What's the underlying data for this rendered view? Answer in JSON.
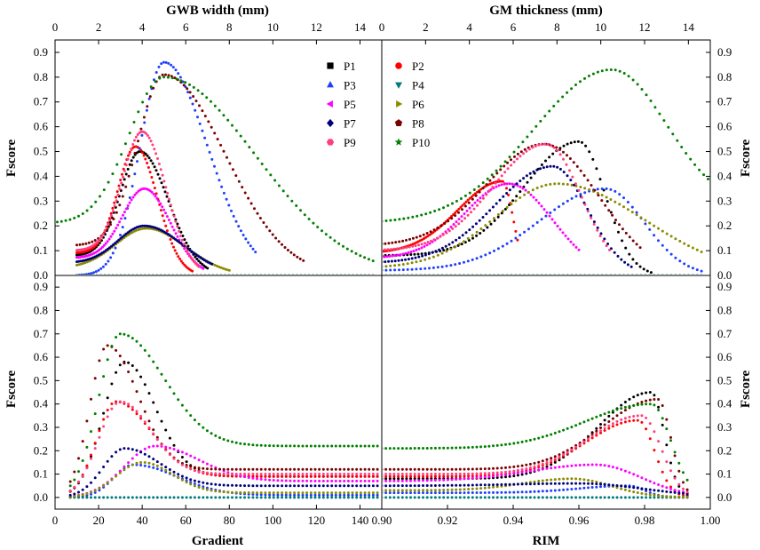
{
  "figure": {
    "colors": {
      "P1": "#000000",
      "P2": "#ff0000",
      "P3": "#1f3fff",
      "P4": "#007a7a",
      "P5": "#ff00ff",
      "P6": "#8b8b00",
      "P7": "#00007a",
      "P8": "#7a0000",
      "P9": "#ff3f7f",
      "P10": "#008000"
    },
    "markers": {
      "P1": "square",
      "P2": "circle",
      "P3": "triangle-up",
      "P4": "triangle-down",
      "P5": "triangle-left",
      "P6": "triangle-right",
      "P7": "diamond",
      "P8": "pentagon",
      "P9": "hexagon",
      "P10": "star"
    },
    "legend": [
      "P1",
      "P2",
      "P3",
      "P4",
      "P5",
      "P6",
      "P7",
      "P8",
      "P9",
      "P10"
    ]
  },
  "chart_data": [
    {
      "id": "tl",
      "type": "scatter",
      "title": "",
      "xlabel": "GWB width (mm)",
      "ylabel": "Fscore",
      "xlim": [
        0,
        15
      ],
      "ylim": [
        0,
        0.95
      ],
      "xticks": [
        0,
        2,
        4,
        6,
        8,
        10,
        12,
        14
      ],
      "yticks": [
        0,
        0.1,
        0.2,
        0.3,
        0.4,
        0.5,
        0.6,
        0.7,
        0.8,
        0.9
      ],
      "xaxis_position": "top",
      "yaxis_position": "left",
      "legend": "top-right",
      "series": [
        {
          "name": "P1",
          "start": 1.0,
          "end": 7.0,
          "base": 0.08,
          "peak": 0.5,
          "center": 3.9,
          "wl": 0.9,
          "wr": 1.3,
          "end_val": 0.0
        },
        {
          "name": "P2",
          "start": 1.0,
          "end": 6.3,
          "base": 0.09,
          "peak": 0.52,
          "center": 3.7,
          "wl": 0.8,
          "wr": 1.0,
          "end_val": 0.0
        },
        {
          "name": "P3",
          "start": 1.0,
          "end": 9.2,
          "base": 0.0,
          "peak": 0.86,
          "center": 5.0,
          "wl": 1.1,
          "wr": 2.0,
          "end_val": 0.0
        },
        {
          "name": "P4",
          "start": 1.0,
          "end": 14.6,
          "base": 0.0,
          "peak": 0.0,
          "center": 5.0,
          "wl": 1.0,
          "wr": 1.0,
          "end_val": 0.0
        },
        {
          "name": "P5",
          "start": 1.0,
          "end": 6.8,
          "base": 0.07,
          "peak": 0.35,
          "center": 4.1,
          "wl": 1.0,
          "wr": 1.2,
          "end_val": 0.0
        },
        {
          "name": "P6",
          "start": 1.0,
          "end": 8.0,
          "base": 0.03,
          "peak": 0.19,
          "center": 4.2,
          "wl": 1.4,
          "wr": 1.8,
          "end_val": 0.0
        },
        {
          "name": "P7",
          "start": 1.0,
          "end": 7.2,
          "base": 0.05,
          "peak": 0.2,
          "center": 4.1,
          "wl": 1.2,
          "wr": 1.8,
          "end_val": 0.0
        },
        {
          "name": "P8",
          "start": 1.0,
          "end": 11.4,
          "base": 0.12,
          "peak": 0.81,
          "center": 5.0,
          "wl": 1.2,
          "wr": 2.8,
          "end_val": 0.0
        },
        {
          "name": "P9",
          "start": 1.0,
          "end": 6.6,
          "base": 0.1,
          "peak": 0.58,
          "center": 4.0,
          "wl": 0.9,
          "wr": 1.1,
          "end_val": 0.0
        },
        {
          "name": "P10",
          "start": 0.1,
          "end": 14.6,
          "base": 0.21,
          "peak": 0.8,
          "center": 5.0,
          "wl": 1.6,
          "wr": 4.2,
          "end_val": 0.0
        }
      ]
    },
    {
      "id": "tr",
      "type": "scatter",
      "title": "",
      "xlabel": "GM thickness (mm)",
      "ylabel": "Fscore",
      "xlim": [
        0,
        15
      ],
      "ylim": [
        0,
        0.95
      ],
      "xticks": [
        0,
        2,
        4,
        6,
        8,
        10,
        12,
        14
      ],
      "yticks": [
        0,
        0.1,
        0.2,
        0.3,
        0.4,
        0.5,
        0.6,
        0.7,
        0.8,
        0.9
      ],
      "xaxis_position": "top",
      "yaxis_position": "right",
      "series": [
        {
          "name": "P1",
          "start": 0.0,
          "end": 12.3,
          "base": 0.08,
          "peak": 0.54,
          "center": 9.0,
          "wl": 2.5,
          "wr": 1.2,
          "end_val": 0.0
        },
        {
          "name": "P2",
          "start": 0.0,
          "end": 6.2,
          "base": 0.09,
          "peak": 0.38,
          "center": 5.5,
          "wl": 2.0,
          "wr": 0.5,
          "end_val": 0.0
        },
        {
          "name": "P3",
          "start": 0.0,
          "end": 14.6,
          "base": 0.02,
          "peak": 0.35,
          "center": 10.2,
          "wl": 3.0,
          "wr": 1.8,
          "end_val": 0.0
        },
        {
          "name": "P4",
          "start": 0.0,
          "end": 14.6,
          "base": 0.0,
          "peak": 0.0,
          "center": 7.0,
          "wl": 1.0,
          "wr": 1.0,
          "end_val": 0.0
        },
        {
          "name": "P5",
          "start": 0.0,
          "end": 9.0,
          "base": 0.07,
          "peak": 0.37,
          "center": 5.8,
          "wl": 2.0,
          "wr": 2.0,
          "end_val": 0.0
        },
        {
          "name": "P6",
          "start": 0.0,
          "end": 14.6,
          "base": 0.03,
          "peak": 0.37,
          "center": 8.0,
          "wl": 2.8,
          "wr": 4.0,
          "end_val": 0.0
        },
        {
          "name": "P7",
          "start": 0.0,
          "end": 11.4,
          "base": 0.05,
          "peak": 0.44,
          "center": 7.8,
          "wl": 2.6,
          "wr": 1.6,
          "end_val": 0.0
        },
        {
          "name": "P8",
          "start": 0.0,
          "end": 11.8,
          "base": 0.12,
          "peak": 0.53,
          "center": 7.4,
          "wl": 2.6,
          "wr": 2.5,
          "end_val": 0.0
        },
        {
          "name": "P9",
          "start": 0.0,
          "end": 10.4,
          "base": 0.1,
          "peak": 0.53,
          "center": 7.5,
          "wl": 2.4,
          "wr": 1.6,
          "end_val": 0.0
        },
        {
          "name": "P10",
          "start": 0.0,
          "end": 14.9,
          "base": 0.21,
          "peak": 0.83,
          "center": 10.5,
          "wl": 3.6,
          "wr": 2.5,
          "end_val": 0.27
        }
      ]
    },
    {
      "id": "bl",
      "type": "scatter",
      "title": "",
      "xlabel": "Gradient",
      "ylabel": "Fscore",
      "xlim": [
        0,
        150
      ],
      "ylim": [
        -0.05,
        0.95
      ],
      "xticks": [
        0,
        20,
        40,
        60,
        80,
        100,
        120,
        140
      ],
      "yticks": [
        0,
        0.1,
        0.2,
        0.3,
        0.4,
        0.5,
        0.6,
        0.7,
        0.8,
        0.9
      ],
      "xaxis_position": "bottom",
      "yaxis_position": "left",
      "series": [
        {
          "name": "P1",
          "start": 7,
          "end": 148,
          "base": 0.0,
          "peak": 0.58,
          "center": 32,
          "wl": 10,
          "wr": 14,
          "end_val": 0.09
        },
        {
          "name": "P2",
          "start": 7,
          "end": 148,
          "base": 0.0,
          "peak": 0.41,
          "center": 28,
          "wl": 9,
          "wr": 16,
          "end_val": 0.09
        },
        {
          "name": "P3",
          "start": 7,
          "end": 148,
          "base": 0.0,
          "peak": 0.14,
          "center": 36,
          "wl": 9,
          "wr": 20,
          "end_val": 0.01
        },
        {
          "name": "P4",
          "start": 7,
          "end": 148,
          "base": 0.0,
          "peak": 0.0,
          "center": 30,
          "wl": 9,
          "wr": 10,
          "end_val": 0.0
        },
        {
          "name": "P5",
          "start": 7,
          "end": 148,
          "base": 0.0,
          "peak": 0.22,
          "center": 46,
          "wl": 14,
          "wr": 20,
          "end_val": 0.07
        },
        {
          "name": "P6",
          "start": 7,
          "end": 148,
          "base": 0.0,
          "peak": 0.15,
          "center": 40,
          "wl": 12,
          "wr": 14,
          "end_val": 0.02
        },
        {
          "name": "P7",
          "start": 7,
          "end": 148,
          "base": 0.0,
          "peak": 0.21,
          "center": 32,
          "wl": 10,
          "wr": 16,
          "end_val": 0.05
        },
        {
          "name": "P8",
          "start": 7,
          "end": 148,
          "base": 0.0,
          "peak": 0.65,
          "center": 24,
          "wl": 8,
          "wr": 14,
          "end_val": 0.12
        },
        {
          "name": "P9",
          "start": 7,
          "end": 148,
          "base": 0.0,
          "peak": 0.41,
          "center": 30,
          "wl": 10,
          "wr": 14,
          "end_val": 0.1
        },
        {
          "name": "P10",
          "start": 7,
          "end": 148,
          "base": 0.0,
          "peak": 0.7,
          "center": 30,
          "wl": 10,
          "wr": 20,
          "end_val": 0.22
        }
      ]
    },
    {
      "id": "br",
      "type": "scatter",
      "title": "",
      "xlabel": "RIM",
      "ylabel": "Fscore",
      "xlim": [
        0.9,
        1.0
      ],
      "ylim": [
        -0.05,
        0.95
      ],
      "xticks": [
        0.9,
        0.92,
        0.94,
        0.96,
        0.98,
        1.0
      ],
      "yticks": [
        0,
        0.1,
        0.2,
        0.3,
        0.4,
        0.5,
        0.6,
        0.7,
        0.8,
        0.9
      ],
      "xaxis_position": "bottom",
      "yaxis_position": "right",
      "series": [
        {
          "name": "P1",
          "start": 0.9,
          "end": 0.993,
          "base": 0.08,
          "peak": 0.45,
          "center": 0.982,
          "wl": 0.016,
          "wr": 0.004,
          "end_val": 0.0
        },
        {
          "name": "P2",
          "start": 0.9,
          "end": 0.993,
          "base": 0.09,
          "peak": 0.33,
          "center": 0.978,
          "wl": 0.016,
          "wr": 0.005,
          "end_val": 0.0
        },
        {
          "name": "P3",
          "start": 0.9,
          "end": 0.993,
          "base": 0.02,
          "peak": 0.05,
          "center": 0.975,
          "wl": 0.015,
          "wr": 0.005,
          "end_val": 0.0
        },
        {
          "name": "P4",
          "start": 0.9,
          "end": 0.993,
          "base": 0.0,
          "peak": 0.0,
          "center": 0.97,
          "wl": 0.01,
          "wr": 0.01,
          "end_val": 0.0
        },
        {
          "name": "P5",
          "start": 0.9,
          "end": 0.993,
          "base": 0.07,
          "peak": 0.14,
          "center": 0.965,
          "wl": 0.02,
          "wr": 0.014,
          "end_val": 0.0
        },
        {
          "name": "P6",
          "start": 0.9,
          "end": 0.993,
          "base": 0.03,
          "peak": 0.08,
          "center": 0.958,
          "wl": 0.015,
          "wr": 0.012,
          "end_val": 0.0
        },
        {
          "name": "P7",
          "start": 0.9,
          "end": 0.993,
          "base": 0.05,
          "peak": 0.06,
          "center": 0.96,
          "wl": 0.02,
          "wr": 0.02,
          "end_val": 0.0
        },
        {
          "name": "P8",
          "start": 0.9,
          "end": 0.993,
          "base": 0.12,
          "peak": 0.42,
          "center": 0.984,
          "wl": 0.017,
          "wr": 0.004,
          "end_val": 0.0
        },
        {
          "name": "P9",
          "start": 0.9,
          "end": 0.993,
          "base": 0.1,
          "peak": 0.35,
          "center": 0.979,
          "wl": 0.016,
          "wr": 0.006,
          "end_val": 0.0
        },
        {
          "name": "P10",
          "start": 0.9,
          "end": 0.993,
          "base": 0.21,
          "peak": 0.4,
          "center": 0.982,
          "wl": 0.02,
          "wr": 0.006,
          "end_val": 0.0
        }
      ]
    }
  ]
}
